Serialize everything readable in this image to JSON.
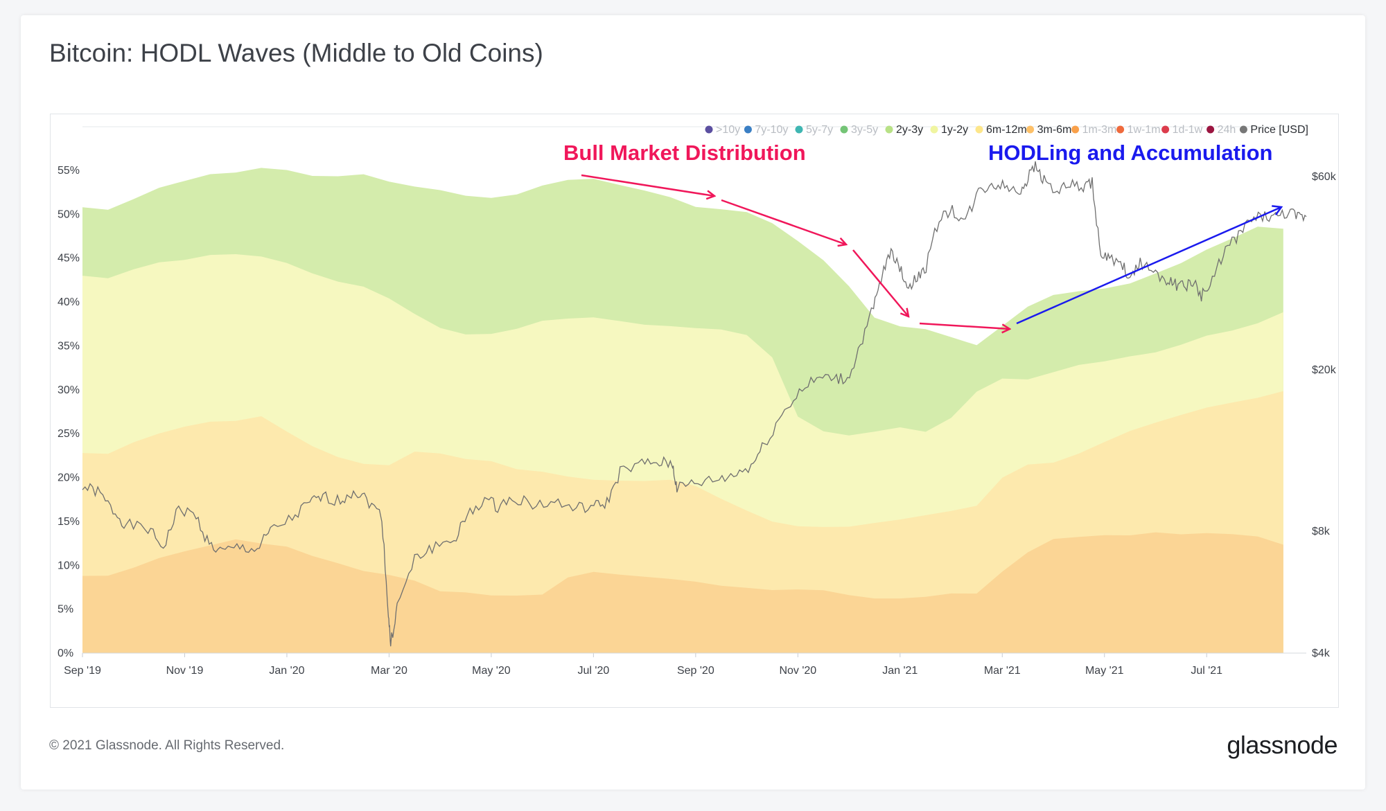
{
  "title": "Bitcoin: HODL Waves (Middle to Old Coins)",
  "footer": {
    "copyright": "© 2021 Glassnode. All Rights Reserved.",
    "logo": "glassnode"
  },
  "watermark": "glassnode",
  "chart_data": {
    "type": "area",
    "title": "Bitcoin: HODL Waves (Middle to Old Coins)",
    "legend": [
      {
        "label": ">10y",
        "color": "#5b4fa0",
        "active": false
      },
      {
        "label": "7y-10y",
        "color": "#3a7fc4",
        "active": false
      },
      {
        "label": "5y-7y",
        "color": "#3fb6b2",
        "active": false
      },
      {
        "label": "3y-5y",
        "color": "#74c476",
        "active": false
      },
      {
        "label": "2y-3y",
        "color": "#b8e186",
        "active": true
      },
      {
        "label": "1y-2y",
        "color": "#f0f5a0",
        "active": true
      },
      {
        "label": "6m-12m",
        "color": "#fde68a",
        "active": true
      },
      {
        "label": "3m-6m",
        "color": "#fdc068",
        "active": true
      },
      {
        "label": "1m-3m",
        "color": "#f9a04a",
        "active": false
      },
      {
        "label": "1w-1m",
        "color": "#ef6a3c",
        "active": false
      },
      {
        "label": "1d-1w",
        "color": "#dc3c4c",
        "active": false
      },
      {
        "label": "24h",
        "color": "#9b1540",
        "active": false
      },
      {
        "label": "Price [USD]",
        "color": "#777777",
        "active": true
      }
    ],
    "x_ticks": [
      "Sep '19",
      "Nov '19",
      "Jan '20",
      "Mar '20",
      "May '20",
      "Jul '20",
      "Sep '20",
      "Nov '20",
      "Jan '21",
      "Mar '21",
      "May '21",
      "Jul '21"
    ],
    "y_left": {
      "ticks": [
        "0%",
        "5%",
        "10%",
        "15%",
        "20%",
        "25%",
        "30%",
        "35%",
        "40%",
        "45%",
        "50%",
        "55%"
      ],
      "range": [
        0,
        55
      ]
    },
    "y_right": {
      "ticks": [
        "$4k",
        "$8k",
        "$20k",
        "$60k"
      ],
      "values": [
        4000,
        8000,
        20000,
        60000
      ],
      "scale": "log"
    },
    "x_months": [
      0,
      0.5,
      1,
      1.5,
      2,
      2.5,
      3,
      3.5,
      4,
      4.5,
      5,
      5.5,
      6,
      6.5,
      7,
      7.5,
      8,
      8.5,
      9,
      9.5,
      10,
      10.5,
      11,
      11.5,
      12,
      12.5,
      13,
      13.5,
      14,
      14.5,
      15,
      15.5,
      16,
      16.5,
      17,
      17.5,
      18,
      18.5,
      19,
      19.5,
      20,
      20.5,
      21,
      21.5,
      22,
      22.5,
      23,
      23.5
    ],
    "series": [
      {
        "name": "3m-6m",
        "color": "#fbd595",
        "values": [
          8.8,
          8.6,
          9.5,
          10.8,
          11.8,
          12.5,
          13.0,
          12.3,
          11.9,
          11.0,
          10.4,
          9.6,
          9.0,
          8.1,
          6.8,
          6.8,
          6.7,
          6.8,
          6.8,
          8.5,
          9.0,
          8.8,
          8.8,
          8.7,
          8.3,
          7.6,
          7.2,
          7.0,
          7.3,
          7.4,
          6.8,
          6.2,
          6.0,
          6.2,
          6.8,
          7.0,
          9.5,
          11.5,
          12.8,
          13.0,
          13.4,
          13.6,
          14.0,
          13.6,
          13.5,
          13.3,
          13.2,
          12.5
        ]
      },
      {
        "name": "6m-12m",
        "color": "#fde9ad",
        "values": [
          22.8,
          22.5,
          23.8,
          25.0,
          26.0,
          26.6,
          26.5,
          26.8,
          25.0,
          23.5,
          22.5,
          21.8,
          21.5,
          22.8,
          22.5,
          22.0,
          22.0,
          21.2,
          20.8,
          20.0,
          19.5,
          19.5,
          19.7,
          20.0,
          19.2,
          17.5,
          16.0,
          14.8,
          14.5,
          14.6,
          14.6,
          14.8,
          15.0,
          15.5,
          16.2,
          17.0,
          20.2,
          21.5,
          21.5,
          22.5,
          24.0,
          25.5,
          26.5,
          27.2,
          27.8,
          28.3,
          29.0,
          30.0
        ]
      },
      {
        "name": "1y-2y",
        "color": "#f6f8c0",
        "values": [
          43.0,
          42.5,
          43.5,
          44.5,
          45.0,
          45.6,
          45.5,
          45.0,
          44.2,
          43.2,
          42.5,
          42.0,
          40.5,
          38.5,
          36.8,
          36.2,
          36.5,
          37.2,
          38.0,
          38.0,
          38.0,
          37.7,
          37.5,
          37.5,
          37.2,
          36.8,
          36.0,
          33.5,
          27.0,
          25.5,
          25.0,
          25.2,
          25.5,
          25.0,
          26.8,
          30.0,
          31.5,
          31.2,
          31.8,
          32.6,
          33.2,
          34.0,
          34.5,
          35.2,
          36.0,
          36.5,
          37.5,
          39.0
        ]
      },
      {
        "name": "2y-3y",
        "color": "#d4ecac",
        "values": [
          50.8,
          50.3,
          51.5,
          53.0,
          54.0,
          54.8,
          54.8,
          55.1,
          54.8,
          54.3,
          54.5,
          54.8,
          53.8,
          53.0,
          52.5,
          52.0,
          52.0,
          52.5,
          53.4,
          53.8,
          53.8,
          53.2,
          52.8,
          52.2,
          51.0,
          50.5,
          50.0,
          48.8,
          47.0,
          45.0,
          42.0,
          38.2,
          37.0,
          36.7,
          36.0,
          35.3,
          37.5,
          39.5,
          40.6,
          41.0,
          41.5,
          42.3,
          43.5,
          44.5,
          45.8,
          47.0,
          48.5,
          48.5
        ]
      }
    ],
    "price_points": [
      [
        0,
        10300
      ],
      [
        0.35,
        10000
      ],
      [
        0.7,
        9000
      ],
      [
        1.0,
        8300
      ],
      [
        1.5,
        8100
      ],
      [
        1.85,
        7300
      ],
      [
        2.2,
        9100
      ],
      [
        2.6,
        8700
      ],
      [
        2.9,
        7400
      ],
      [
        3.2,
        7100
      ],
      [
        3.6,
        7300
      ],
      [
        4.0,
        7200
      ],
      [
        4.3,
        8000
      ],
      [
        4.8,
        8600
      ],
      [
        5.2,
        9400
      ],
      [
        5.5,
        9700
      ],
      [
        5.9,
        9500
      ],
      [
        6.2,
        10100
      ],
      [
        6.5,
        9600
      ],
      [
        6.85,
        8700
      ],
      [
        7.0,
        5000
      ],
      [
        7.05,
        4200
      ],
      [
        7.2,
        5200
      ],
      [
        7.6,
        6800
      ],
      [
        8.0,
        7300
      ],
      [
        8.5,
        7600
      ],
      [
        8.8,
        8700
      ],
      [
        9.2,
        9600
      ],
      [
        9.5,
        9200
      ],
      [
        9.9,
        9700
      ],
      [
        10.3,
        9300
      ],
      [
        10.8,
        9400
      ],
      [
        11.3,
        9100
      ],
      [
        11.7,
        9200
      ],
      [
        12.0,
        9400
      ],
      [
        12.3,
        11200
      ],
      [
        12.8,
        11700
      ],
      [
        13.2,
        11800
      ],
      [
        13.5,
        11700
      ],
      [
        13.6,
        10200
      ],
      [
        14.0,
        10500
      ],
      [
        14.5,
        10700
      ],
      [
        14.9,
        11000
      ],
      [
        15.3,
        11600
      ],
      [
        15.6,
        13100
      ],
      [
        16.0,
        15500
      ],
      [
        16.4,
        17700
      ],
      [
        16.8,
        19000
      ],
      [
        17.2,
        19100
      ],
      [
        17.5,
        18900
      ],
      [
        17.8,
        23000
      ],
      [
        18.1,
        28500
      ],
      [
        18.3,
        34000
      ],
      [
        18.5,
        40000
      ],
      [
        18.7,
        35500
      ],
      [
        18.9,
        32000
      ],
      [
        19.1,
        33800
      ],
      [
        19.3,
        36000
      ],
      [
        19.6,
        47500
      ],
      [
        19.9,
        49500
      ],
      [
        20.2,
        46500
      ],
      [
        20.5,
        55000
      ],
      [
        20.8,
        57500
      ],
      [
        21.1,
        57000
      ],
      [
        21.4,
        55000
      ],
      [
        21.6,
        58500
      ],
      [
        21.8,
        64000
      ],
      [
        22.0,
        59000
      ],
      [
        22.3,
        55000
      ],
      [
        22.6,
        57500
      ],
      [
        22.9,
        56000
      ],
      [
        23.1,
        58000
      ],
      [
        23.3,
        38000
      ],
      [
        23.5,
        37500
      ],
      [
        23.8,
        36000
      ],
      [
        24.0,
        33500
      ],
      [
        24.2,
        37000
      ],
      [
        24.5,
        35000
      ],
      [
        24.8,
        33500
      ],
      [
        25.0,
        32500
      ],
      [
        25.2,
        32000
      ],
      [
        25.4,
        33000
      ],
      [
        25.6,
        30500
      ],
      [
        25.8,
        32000
      ],
      [
        26.1,
        39000
      ],
      [
        26.4,
        42500
      ],
      [
        26.7,
        46500
      ],
      [
        27.0,
        48000
      ],
      [
        27.3,
        47500
      ],
      [
        27.6,
        49000
      ],
      [
        27.8,
        47500
      ],
      [
        28.0,
        47800
      ]
    ],
    "annotations": [
      {
        "text": "Bull Market Distribution",
        "color": "#f0175a"
      },
      {
        "text": "HODLing and Accumulation",
        "color": "#1a1aee"
      }
    ]
  }
}
